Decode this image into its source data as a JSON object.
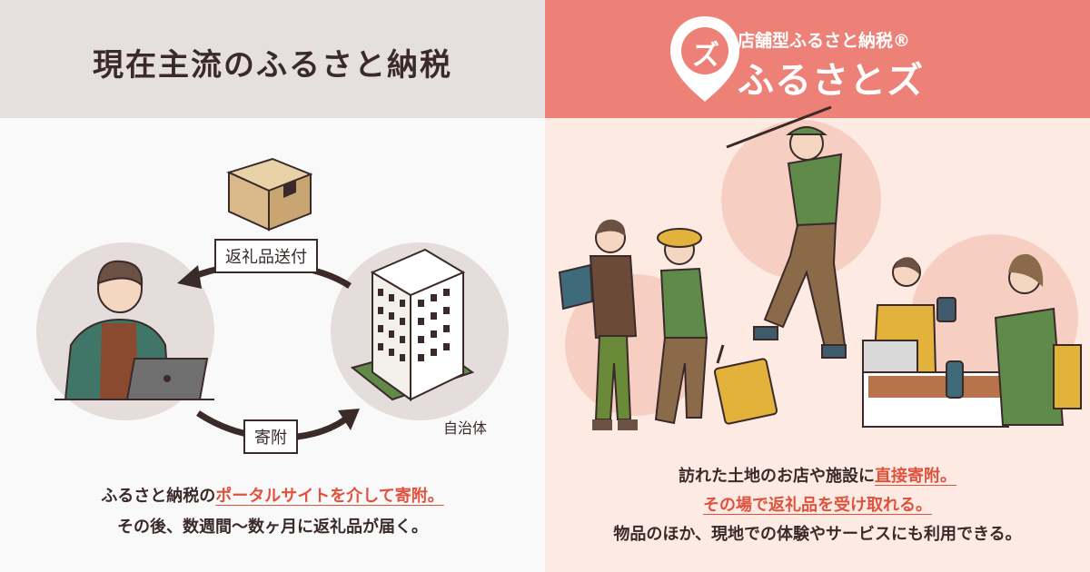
{
  "left": {
    "title": "現在主流のふるさと納税",
    "tag_send": "返礼品送付",
    "tag_donate": "寄附",
    "municipality_label": "自治体",
    "caption_1_prefix": "ふるさと納税の",
    "caption_1_highlight": "ポータルサイトを介して寄附。",
    "caption_2": "その後、数週間〜数ヶ月に返礼品が届く。"
  },
  "right": {
    "brand_sub": "店舗型ふるさと納税®",
    "brand_name": "ふるさとズ",
    "logo_glyph": "ズ",
    "caption_1_prefix": "訪れた土地のお店や施設に",
    "caption_1_highlight": "直接寄附。",
    "caption_2_highlight": "その場で返礼品を受け取れる。",
    "caption_3": "物品のほか、現地での体験やサービスにも利用できる。"
  },
  "colors": {
    "left_header_bg": "#e6dfdf",
    "right_header_bg": "#ed8178",
    "right_panel_bg": "#fdebe3",
    "highlight": "#e0523e",
    "dark_text": "#3a2a2a"
  }
}
